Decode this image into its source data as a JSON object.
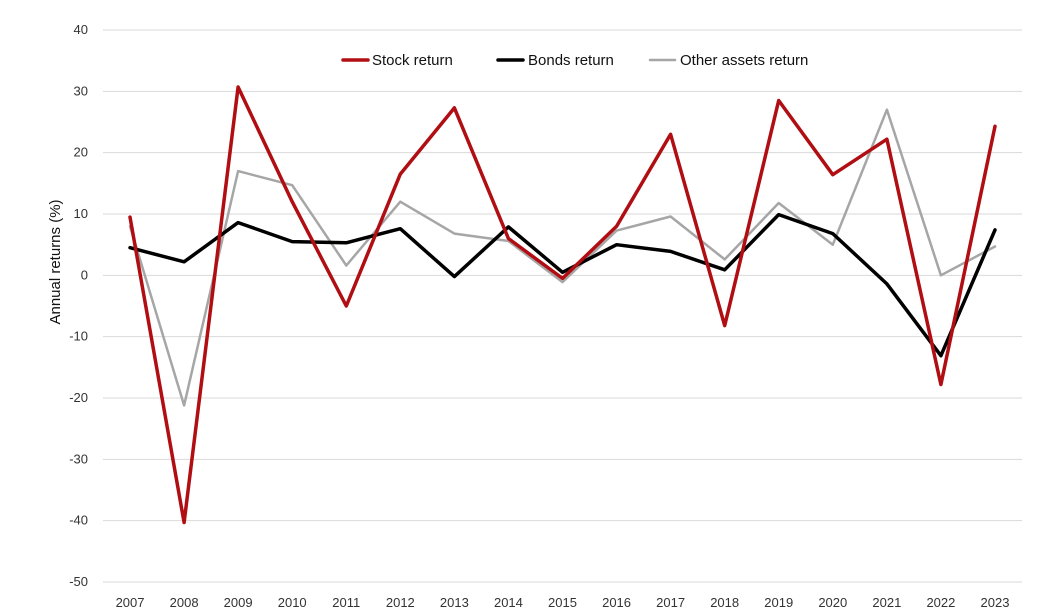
{
  "chart_data": {
    "type": "line",
    "ylabel": "Annual returns (%)",
    "xlabel": "",
    "ylim": [
      -50,
      40
    ],
    "yticks": [
      40,
      30,
      20,
      10,
      0,
      -10,
      -20,
      -30,
      -40,
      -50
    ],
    "grid": true,
    "legend_position": "top-center",
    "categories": [
      "2007",
      "2008",
      "2009",
      "2010",
      "2011",
      "2012",
      "2013",
      "2014",
      "2015",
      "2016",
      "2017",
      "2018",
      "2019",
      "2020",
      "2021",
      "2022",
      "2023"
    ],
    "series": [
      {
        "name": "Stock return",
        "color": "#b00e12",
        "width": 3.5,
        "values": [
          9.5,
          -40.3,
          30.7,
          12.0,
          -5.0,
          16.5,
          27.3,
          6.0,
          -0.5,
          8.0,
          23.0,
          -8.2,
          28.5,
          16.4,
          22.2,
          -17.8,
          24.3
        ]
      },
      {
        "name": "Bonds return",
        "color": "#000000",
        "width": 3.5,
        "values": [
          4.5,
          2.2,
          8.6,
          5.5,
          5.3,
          7.6,
          -0.2,
          7.9,
          0.5,
          5.0,
          3.9,
          0.9,
          9.9,
          6.8,
          -1.4,
          -13.1,
          7.4
        ]
      },
      {
        "name": "Other assets return",
        "color": "#a6a6a6",
        "width": 2.5,
        "values": [
          8.0,
          -21.2,
          17.0,
          14.7,
          1.6,
          12.0,
          6.8,
          5.6,
          -1.1,
          7.3,
          9.6,
          2.6,
          11.8,
          5.0,
          27.0,
          0.0,
          4.7
        ]
      }
    ]
  }
}
